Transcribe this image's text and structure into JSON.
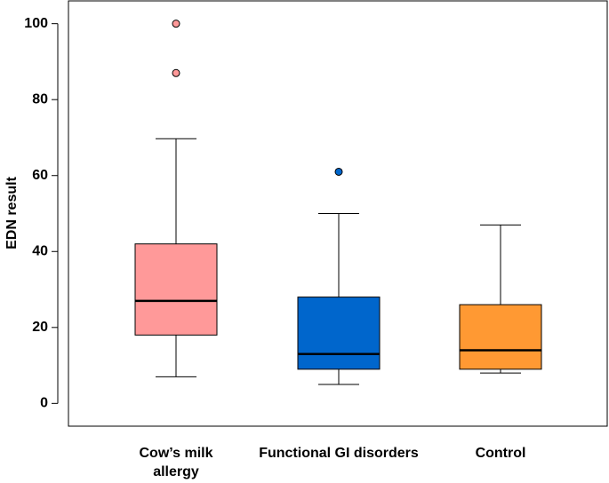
{
  "chart_data": {
    "type": "boxplot",
    "title": "",
    "xlabel": "",
    "ylabel": "EDN result",
    "ylim": [
      -6,
      106
    ],
    "yticks": [
      0,
      20,
      40,
      60,
      80,
      100
    ],
    "grid": false,
    "legend": "none",
    "categories": [
      {
        "lines": [
          "Cow’s milk",
          "allergy"
        ]
      },
      {
        "lines": [
          "Functional GI disorders"
        ]
      },
      {
        "lines": [
          "Control"
        ]
      }
    ],
    "boxes": [
      {
        "whisker_low": 7,
        "q1": 18,
        "median": 27,
        "q3": 42,
        "whisker_high": 69.7,
        "outliers": [
          87,
          100
        ],
        "color": "#ff9999"
      },
      {
        "whisker_low": 5,
        "q1": 9,
        "median": 13,
        "q3": 28,
        "whisker_high": 50,
        "outliers": [
          61
        ],
        "color": "#0066cc"
      },
      {
        "whisker_low": 8,
        "q1": 9,
        "median": 14,
        "q3": 26,
        "whisker_high": 47,
        "outliers": [],
        "color": "#ff9933"
      }
    ]
  }
}
